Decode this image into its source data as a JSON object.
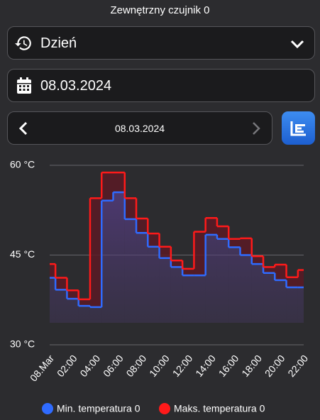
{
  "header": {
    "title": "Zewnętrzny czujnik 0"
  },
  "period_select": {
    "label": "Dzień"
  },
  "date_input": {
    "label": "08.03.2024"
  },
  "date_nav": {
    "label": "08.03.2024"
  },
  "chart_data": {
    "type": "step",
    "x": [
      0,
      1,
      2,
      3,
      4,
      5,
      6,
      7,
      8,
      9,
      10,
      11,
      12,
      13,
      14,
      15,
      16,
      17,
      18,
      19,
      20,
      21,
      22
    ],
    "xlim": [
      0,
      22
    ],
    "xticks": [
      {
        "value": 0,
        "label": "08.Mar"
      },
      {
        "value": 2,
        "label": "02:00"
      },
      {
        "value": 4,
        "label": "04:00"
      },
      {
        "value": 6,
        "label": "06:00"
      },
      {
        "value": 8,
        "label": "08:00"
      },
      {
        "value": 10,
        "label": "10:00"
      },
      {
        "value": 12,
        "label": "12:00"
      },
      {
        "value": 14,
        "label": "14:00"
      },
      {
        "value": 16,
        "label": "16:00"
      },
      {
        "value": 18,
        "label": "18:00"
      },
      {
        "value": 20,
        "label": "20:00"
      },
      {
        "value": 22,
        "label": "22:00"
      }
    ],
    "ylim": [
      30,
      60
    ],
    "yticks": [
      {
        "value": 30,
        "label": "30 °C"
      },
      {
        "value": 45,
        "label": "45 °C"
      },
      {
        "value": 60,
        "label": "60 °C"
      }
    ],
    "grid": true,
    "series": [
      {
        "name": "Min. temperatura 0",
        "color": "#2f6bff",
        "values": [
          41.2,
          39.2,
          37.7,
          36.5,
          36.3,
          54.1,
          55.5,
          51.0,
          48.7,
          46.4,
          44.5,
          43.0,
          41.6,
          41.6,
          48.4,
          47.7,
          46.3,
          45.0,
          43.5,
          42.0,
          40.8,
          39.6,
          39.6
        ]
      },
      {
        "name": "Maks. temperatura 0",
        "color": "#ff1a1a",
        "values": [
          43.5,
          41.2,
          39.1,
          37.6,
          54.5,
          58.8,
          58.8,
          54.5,
          51.1,
          48.6,
          46.4,
          44.1,
          42.7,
          48.9,
          51.2,
          49.8,
          47.7,
          47.8,
          44.8,
          43.0,
          43.4,
          41.3,
          42.5
        ]
      }
    ]
  }
}
